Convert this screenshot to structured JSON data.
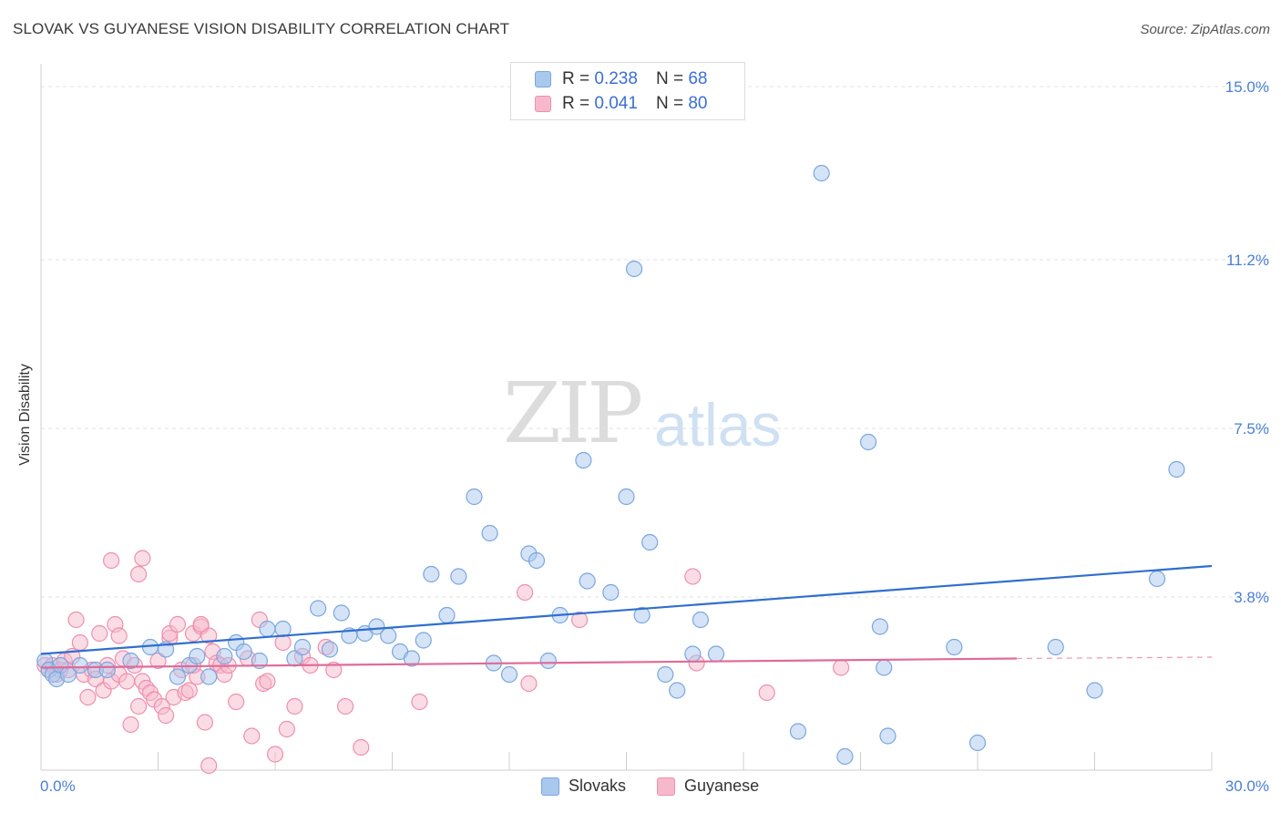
{
  "header": {
    "title": "SLOVAK VS GUYANESE VISION DISABILITY CORRELATION CHART",
    "source": "Source: ZipAtlas.com"
  },
  "watermark": {
    "zip": "ZIP",
    "atlas": "atlas"
  },
  "legend": {
    "rows": [
      {
        "r_label": "R = ",
        "r_value": "0.238",
        "n_label": "N = ",
        "n_value": "68",
        "color": "#a9c8ee",
        "border": "#7aa6de"
      },
      {
        "r_label": "R = ",
        "r_value": "0.041",
        "n_label": "N = ",
        "n_value": "80",
        "color": "#f6b9cc",
        "border": "#ee8fae"
      }
    ]
  },
  "bottom_legend": {
    "series1": "Slovaks",
    "series2": "Guyanese"
  },
  "chart_data": {
    "type": "scatter",
    "title": "SLOVAK VS GUYANESE VISION DISABILITY CORRELATION CHART",
    "xlabel": "",
    "ylabel": "Vision Disability",
    "xlim": [
      0,
      30
    ],
    "ylim": [
      0,
      15.5
    ],
    "x_tick_labels": [
      "0.0%",
      "30.0%"
    ],
    "y_ticks": [
      3.8,
      7.5,
      11.2,
      15.0
    ],
    "y_tick_labels": [
      "3.8%",
      "7.5%",
      "11.2%",
      "15.0%"
    ],
    "grid": "horizontal dashed",
    "series": [
      {
        "name": "Slovaks",
        "color": "#a9c8ee",
        "stroke": "#7aa6de",
        "trend": {
          "x": [
            0,
            30
          ],
          "y": [
            2.55,
            4.48
          ],
          "color": "#2f6fce"
        },
        "points": [
          [
            0.1,
            2.4
          ],
          [
            0.2,
            2.2
          ],
          [
            0.3,
            2.1
          ],
          [
            0.4,
            2.0
          ],
          [
            0.5,
            2.3
          ],
          [
            0.7,
            2.1
          ],
          [
            1.0,
            2.3
          ],
          [
            1.4,
            2.2
          ],
          [
            1.7,
            2.2
          ],
          [
            2.3,
            2.4
          ],
          [
            2.8,
            2.7
          ],
          [
            3.2,
            2.65
          ],
          [
            3.5,
            2.05
          ],
          [
            3.8,
            2.3
          ],
          [
            4.0,
            2.5
          ],
          [
            4.3,
            2.05
          ],
          [
            4.7,
            2.5
          ],
          [
            5.0,
            2.8
          ],
          [
            5.2,
            2.6
          ],
          [
            5.6,
            2.4
          ],
          [
            5.8,
            3.1
          ],
          [
            6.2,
            3.1
          ],
          [
            6.5,
            2.45
          ],
          [
            6.7,
            2.7
          ],
          [
            7.1,
            3.55
          ],
          [
            7.4,
            2.65
          ],
          [
            7.7,
            3.45
          ],
          [
            7.9,
            2.95
          ],
          [
            8.3,
            3.0
          ],
          [
            8.6,
            3.15
          ],
          [
            8.9,
            2.95
          ],
          [
            9.2,
            2.6
          ],
          [
            9.5,
            2.45
          ],
          [
            9.8,
            2.85
          ],
          [
            10.0,
            4.3
          ],
          [
            10.4,
            3.4
          ],
          [
            10.7,
            4.25
          ],
          [
            11.1,
            6.0
          ],
          [
            11.5,
            5.2
          ],
          [
            11.6,
            2.35
          ],
          [
            12.0,
            2.1
          ],
          [
            12.5,
            4.75
          ],
          [
            12.7,
            4.6
          ],
          [
            13.0,
            2.4
          ],
          [
            13.3,
            3.4
          ],
          [
            13.9,
            6.8
          ],
          [
            14.0,
            4.15
          ],
          [
            14.6,
            3.9
          ],
          [
            15.0,
            6.0
          ],
          [
            15.2,
            11.0
          ],
          [
            15.4,
            3.4
          ],
          [
            15.6,
            5.0
          ],
          [
            16.0,
            2.1
          ],
          [
            16.3,
            1.75
          ],
          [
            16.7,
            2.55
          ],
          [
            16.9,
            3.3
          ],
          [
            17.3,
            2.55
          ],
          [
            19.4,
            0.85
          ],
          [
            20.0,
            13.1
          ],
          [
            20.6,
            0.3
          ],
          [
            21.2,
            7.2
          ],
          [
            21.5,
            3.15
          ],
          [
            21.6,
            2.25
          ],
          [
            21.7,
            0.75
          ],
          [
            23.4,
            2.7
          ],
          [
            24.0,
            0.6
          ],
          [
            26.0,
            2.7
          ],
          [
            27.0,
            1.75
          ],
          [
            28.6,
            4.2
          ],
          [
            29.1,
            6.6
          ]
        ]
      },
      {
        "name": "Guyanese",
        "color": "#f6b9cc",
        "stroke": "#ee8fae",
        "trend": {
          "x": [
            0,
            25
          ],
          "y": [
            2.25,
            2.45
          ],
          "color": "#e06b98",
          "dashed_extension_to": 30,
          "dashed_y_end": 2.48
        },
        "points": [
          [
            0.1,
            2.3
          ],
          [
            0.2,
            2.2
          ],
          [
            0.3,
            2.3
          ],
          [
            0.4,
            2.1
          ],
          [
            0.5,
            2.2
          ],
          [
            0.6,
            2.4
          ],
          [
            0.7,
            2.2
          ],
          [
            0.8,
            2.5
          ],
          [
            0.9,
            3.3
          ],
          [
            1.0,
            2.8
          ],
          [
            1.1,
            2.1
          ],
          [
            1.2,
            1.6
          ],
          [
            1.3,
            2.2
          ],
          [
            1.4,
            2.0
          ],
          [
            1.5,
            3.0
          ],
          [
            1.6,
            1.75
          ],
          [
            1.7,
            2.3
          ],
          [
            1.8,
            1.95
          ],
          [
            1.9,
            3.2
          ],
          [
            2.0,
            2.95
          ],
          [
            1.8,
            4.6
          ],
          [
            2.0,
            2.1
          ],
          [
            2.1,
            2.45
          ],
          [
            2.2,
            1.95
          ],
          [
            2.3,
            1.0
          ],
          [
            2.4,
            2.3
          ],
          [
            2.5,
            1.4
          ],
          [
            2.6,
            1.95
          ],
          [
            2.7,
            1.8
          ],
          [
            2.8,
            1.7
          ],
          [
            2.5,
            4.3
          ],
          [
            2.6,
            4.65
          ],
          [
            2.9,
            1.55
          ],
          [
            3.0,
            2.4
          ],
          [
            3.1,
            1.4
          ],
          [
            3.2,
            1.2
          ],
          [
            3.3,
            2.9
          ],
          [
            3.3,
            3.0
          ],
          [
            3.4,
            1.6
          ],
          [
            3.5,
            3.2
          ],
          [
            3.6,
            2.2
          ],
          [
            3.7,
            1.7
          ],
          [
            3.8,
            1.75
          ],
          [
            3.9,
            3.0
          ],
          [
            4.0,
            2.05
          ],
          [
            4.1,
            3.15
          ],
          [
            4.2,
            1.05
          ],
          [
            4.3,
            2.95
          ],
          [
            4.4,
            2.6
          ],
          [
            4.5,
            2.35
          ],
          [
            4.1,
            3.2
          ],
          [
            4.6,
            2.3
          ],
          [
            4.7,
            2.1
          ],
          [
            4.8,
            2.3
          ],
          [
            5.0,
            1.5
          ],
          [
            5.3,
            2.45
          ],
          [
            5.4,
            0.75
          ],
          [
            5.6,
            3.3
          ],
          [
            5.7,
            1.9
          ],
          [
            5.8,
            1.95
          ],
          [
            4.3,
            0.1
          ],
          [
            6.0,
            0.35
          ],
          [
            6.3,
            0.9
          ],
          [
            6.5,
            1.4
          ],
          [
            6.7,
            2.5
          ],
          [
            6.9,
            2.3
          ],
          [
            7.3,
            2.7
          ],
          [
            7.5,
            2.2
          ],
          [
            7.8,
            1.4
          ],
          [
            8.2,
            0.5
          ],
          [
            9.7,
            1.5
          ],
          [
            12.4,
            3.9
          ],
          [
            12.5,
            1.9
          ],
          [
            13.8,
            3.3
          ],
          [
            16.7,
            4.25
          ],
          [
            16.8,
            2.35
          ],
          [
            18.6,
            1.7
          ],
          [
            20.5,
            2.25
          ],
          [
            6.2,
            2.8
          ],
          [
            3.9,
            2.3
          ]
        ]
      }
    ]
  }
}
